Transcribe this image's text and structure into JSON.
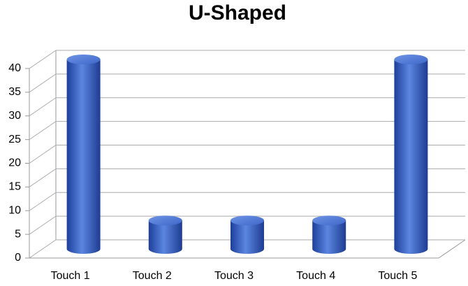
{
  "chart_data": {
    "type": "bar",
    "title": "U-Shaped",
    "categories": [
      "Touch 1",
      "Touch 2",
      "Touch 3",
      "Touch 4",
      "Touch 5"
    ],
    "values": [
      40,
      6,
      6,
      6,
      40
    ],
    "color": "#3a62c4",
    "ylim": [
      0,
      40
    ],
    "yticks": [
      0,
      5,
      10,
      15,
      20,
      25,
      30,
      35,
      40
    ],
    "grid": true
  }
}
